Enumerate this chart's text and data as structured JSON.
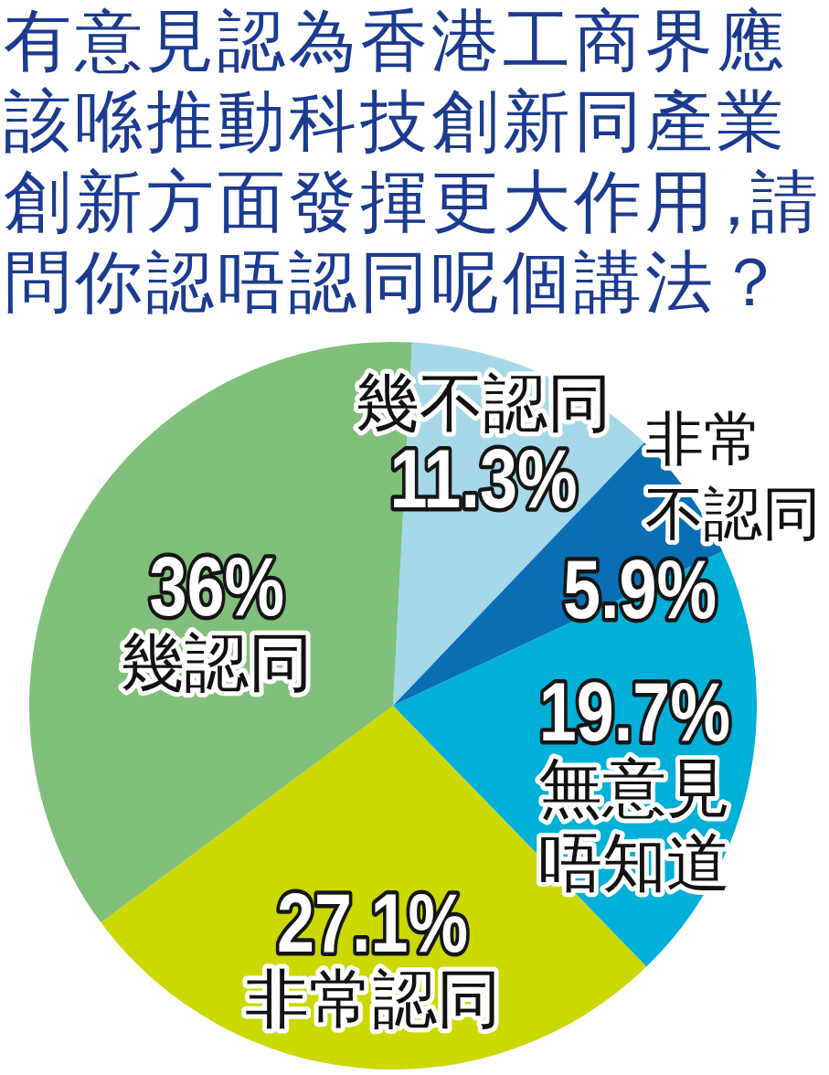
{
  "chart_data": {
    "type": "pie",
    "title": "有意見認為香港工商界應該喺推動科技創新同產業創新方面發揮更大作用，請問你認唔認同呢個講法？",
    "categories": [
      "幾不認同",
      "非常不認同",
      "無意見唔知道",
      "非常認同",
      "幾認同"
    ],
    "values": [
      11.3,
      5.9,
      19.7,
      27.1,
      36
    ],
    "colors": [
      "#a6d8ea",
      "#0a6eb4",
      "#00b0d8",
      "#cbd900",
      "#80c07a"
    ],
    "value_labels": [
      "11.3%",
      "5.9%",
      "19.7%",
      "27.1%",
      "36%"
    ]
  }
}
